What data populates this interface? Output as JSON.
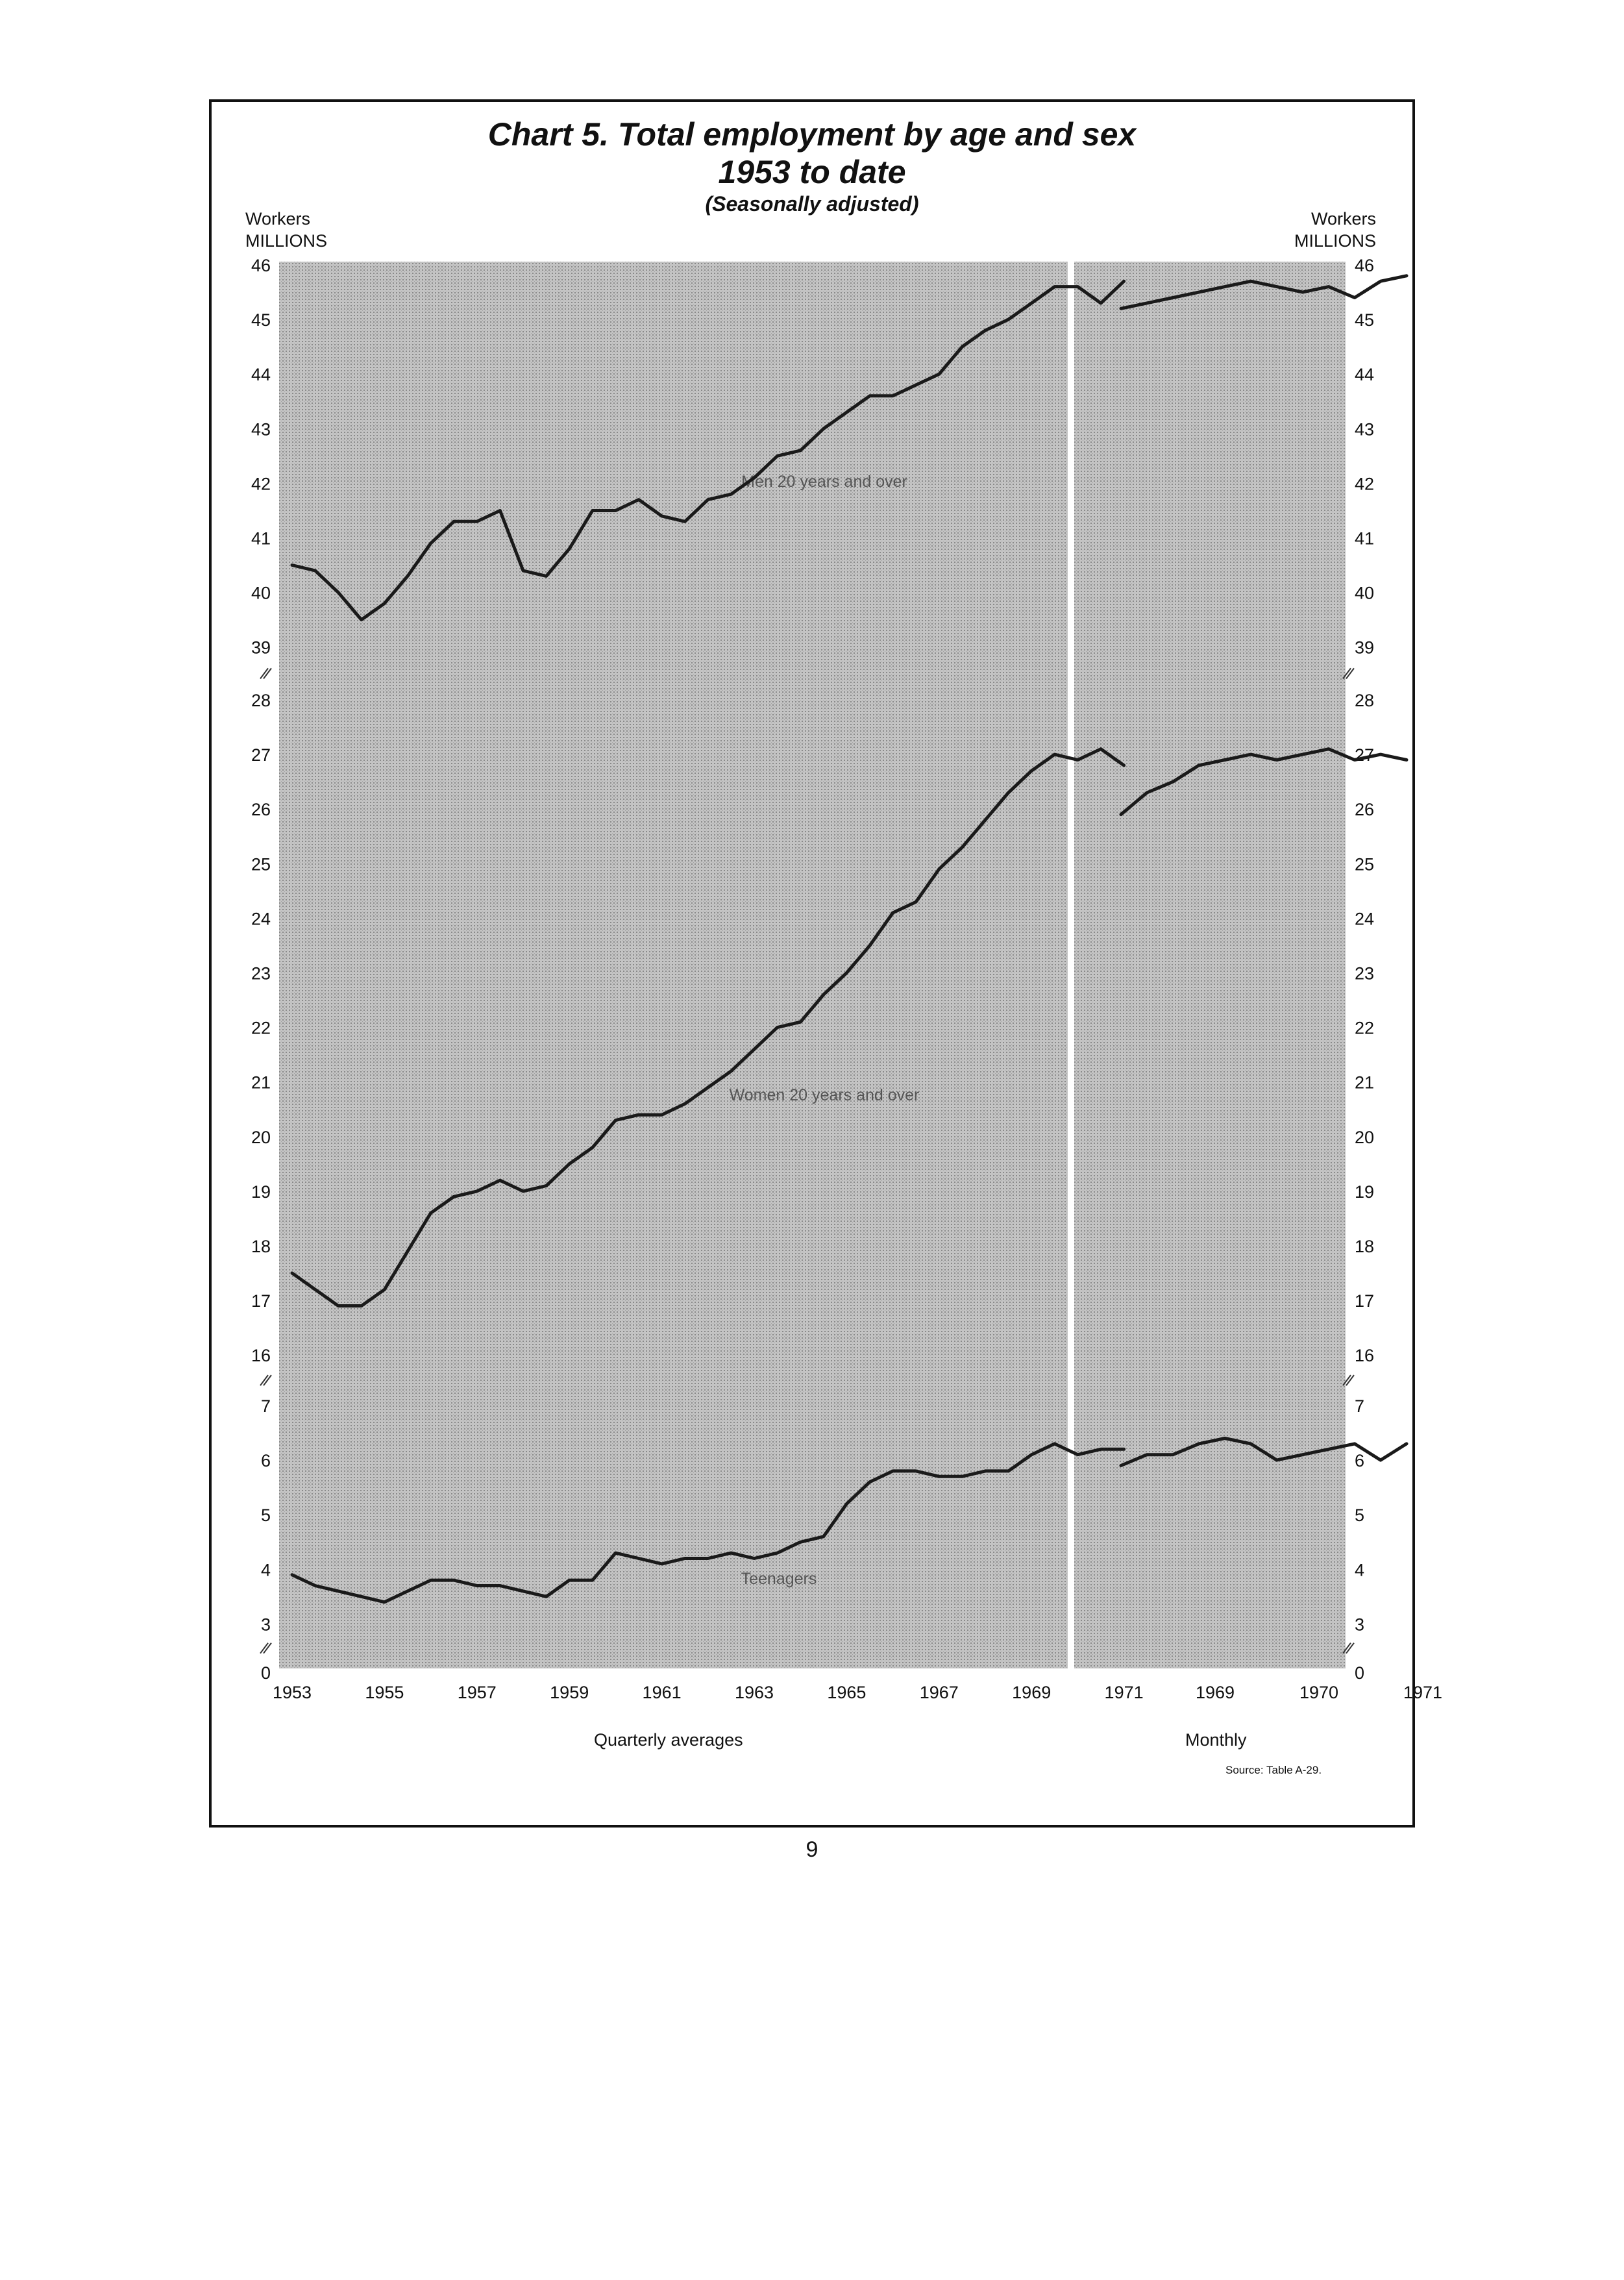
{
  "title_line1": "Chart 5. Total employment by age and sex",
  "title_line2": "1953 to date",
  "subtitle": "(Seasonally adjusted)",
  "unit_line1": "Workers",
  "unit_line2": "MILLIONS",
  "quarterly_label": "Quarterly averages",
  "monthly_label": "Monthly",
  "source": "Source: Table A-29.",
  "page_number": "9",
  "chart_data": {
    "type": "line",
    "title": "Chart 5. Total employment by age and sex 1953 to date",
    "subtitle": "(Seasonally adjusted)",
    "ylabel": "Workers MILLIONS",
    "grid": false,
    "y_axis_broken": true,
    "panels": [
      {
        "name": "Men 20 years and over",
        "ylim": [
          39,
          46
        ],
        "ticks": [
          39,
          40,
          41,
          42,
          43,
          44,
          45,
          46
        ]
      },
      {
        "name": "Women 20 years and over",
        "ylim": [
          16,
          28
        ],
        "ticks": [
          16,
          17,
          18,
          19,
          20,
          21,
          22,
          23,
          24,
          25,
          26,
          27,
          28
        ]
      },
      {
        "name": "Teenagers",
        "ylim": [
          3,
          7
        ],
        "ticks": [
          3,
          4,
          5,
          6,
          7
        ],
        "baseline_tick": 0
      }
    ],
    "quarterly": {
      "x_label": "Quarterly averages",
      "x_ticks": [
        "1953",
        "1955",
        "1957",
        "1959",
        "1961",
        "1963",
        "1965",
        "1967",
        "1969",
        "1971"
      ],
      "x": [
        1953,
        1953.5,
        1954,
        1954.5,
        1955,
        1955.5,
        1956,
        1956.5,
        1957,
        1957.5,
        1958,
        1958.5,
        1959,
        1959.5,
        1960,
        1960.5,
        1961,
        1961.5,
        1962,
        1962.5,
        1963,
        1963.5,
        1964,
        1964.5,
        1965,
        1965.5,
        1966,
        1966.5,
        1967,
        1967.5,
        1968,
        1968.5,
        1969,
        1969.5,
        1970,
        1970.5,
        1971
      ],
      "series": [
        {
          "name": "Men 20 years and over",
          "values": [
            40.5,
            40.4,
            40.0,
            39.5,
            39.8,
            40.3,
            40.9,
            41.3,
            41.3,
            41.5,
            40.4,
            40.3,
            40.8,
            41.5,
            41.5,
            41.7,
            41.4,
            41.3,
            41.7,
            41.8,
            42.1,
            42.5,
            42.6,
            43.0,
            43.3,
            43.6,
            43.6,
            43.8,
            44.0,
            44.5,
            44.8,
            45.0,
            45.3,
            45.6,
            45.6,
            45.3,
            45.7
          ]
        },
        {
          "name": "Women 20 years and over",
          "values": [
            17.5,
            17.2,
            16.9,
            16.9,
            17.2,
            17.9,
            18.6,
            18.9,
            19.0,
            19.2,
            19.0,
            19.1,
            19.5,
            19.8,
            20.3,
            20.4,
            20.4,
            20.6,
            20.9,
            21.2,
            21.6,
            22.0,
            22.1,
            22.6,
            23.0,
            23.5,
            24.1,
            24.3,
            24.9,
            25.3,
            25.8,
            26.3,
            26.7,
            27.0,
            26.9,
            27.1,
            26.8
          ]
        },
        {
          "name": "Teenagers",
          "values": [
            3.9,
            3.7,
            3.6,
            3.5,
            3.4,
            3.6,
            3.8,
            3.8,
            3.7,
            3.7,
            3.6,
            3.5,
            3.8,
            3.8,
            4.3,
            4.2,
            4.1,
            4.2,
            4.2,
            4.3,
            4.2,
            4.3,
            4.5,
            4.6,
            5.2,
            5.6,
            5.8,
            5.8,
            5.7,
            5.7,
            5.8,
            5.8,
            6.1,
            6.3,
            6.1,
            6.2,
            6.2
          ]
        }
      ]
    },
    "monthly": {
      "x_label": "Monthly",
      "x_ticks": [
        "1969",
        "1970",
        "1971"
      ],
      "x": [
        1968.5,
        1968.75,
        1969,
        1969.25,
        1969.5,
        1969.75,
        1970,
        1970.25,
        1970.5,
        1970.75,
        1971,
        1971.25
      ],
      "series": [
        {
          "name": "Men 20 years and over",
          "values": [
            45.2,
            45.3,
            45.4,
            45.5,
            45.6,
            45.7,
            45.6,
            45.5,
            45.6,
            45.4,
            45.7,
            45.8
          ]
        },
        {
          "name": "Women 20 years and over",
          "values": [
            25.9,
            26.3,
            26.5,
            26.8,
            26.9,
            27.0,
            26.9,
            27.0,
            27.1,
            26.9,
            27.0,
            26.9
          ]
        },
        {
          "name": "Teenagers",
          "values": [
            5.9,
            6.1,
            6.1,
            6.3,
            6.4,
            6.3,
            6.0,
            6.1,
            6.2,
            6.3,
            6.0,
            6.3
          ]
        }
      ]
    }
  }
}
